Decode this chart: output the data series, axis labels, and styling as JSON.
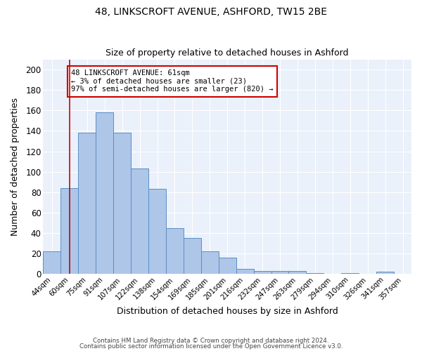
{
  "title1": "48, LINKSCROFT AVENUE, ASHFORD, TW15 2BE",
  "title2": "Size of property relative to detached houses in Ashford",
  "xlabel": "Distribution of detached houses by size in Ashford",
  "ylabel": "Number of detached properties",
  "bar_labels": [
    "44sqm",
    "60sqm",
    "75sqm",
    "91sqm",
    "107sqm",
    "122sqm",
    "138sqm",
    "154sqm",
    "169sqm",
    "185sqm",
    "201sqm",
    "216sqm",
    "232sqm",
    "247sqm",
    "263sqm",
    "279sqm",
    "294sqm",
    "310sqm",
    "326sqm",
    "341sqm",
    "357sqm"
  ],
  "bar_values": [
    22,
    84,
    138,
    158,
    138,
    103,
    83,
    45,
    35,
    22,
    16,
    5,
    3,
    3,
    3,
    1,
    0,
    1,
    0,
    2,
    0
  ],
  "bar_color": "#aec6e8",
  "bar_edge_color": "#5b8ec4",
  "vline_x": 1,
  "vline_color": "#cc0000",
  "annotation_text": "48 LINKSCROFT AVENUE: 61sqm\n← 3% of detached houses are smaller (23)\n97% of semi-detached houses are larger (820) →",
  "annotation_box_color": "#ffffff",
  "annotation_box_edge_color": "#cc0000",
  "ylim": [
    0,
    210
  ],
  "yticks": [
    0,
    20,
    40,
    60,
    80,
    100,
    120,
    140,
    160,
    180,
    200
  ],
  "background_color": "#eaf1fb",
  "grid_color": "#ffffff",
  "footer1": "Contains HM Land Registry data © Crown copyright and database right 2024.",
  "footer2": "Contains public sector information licensed under the Open Government Licence v3.0."
}
